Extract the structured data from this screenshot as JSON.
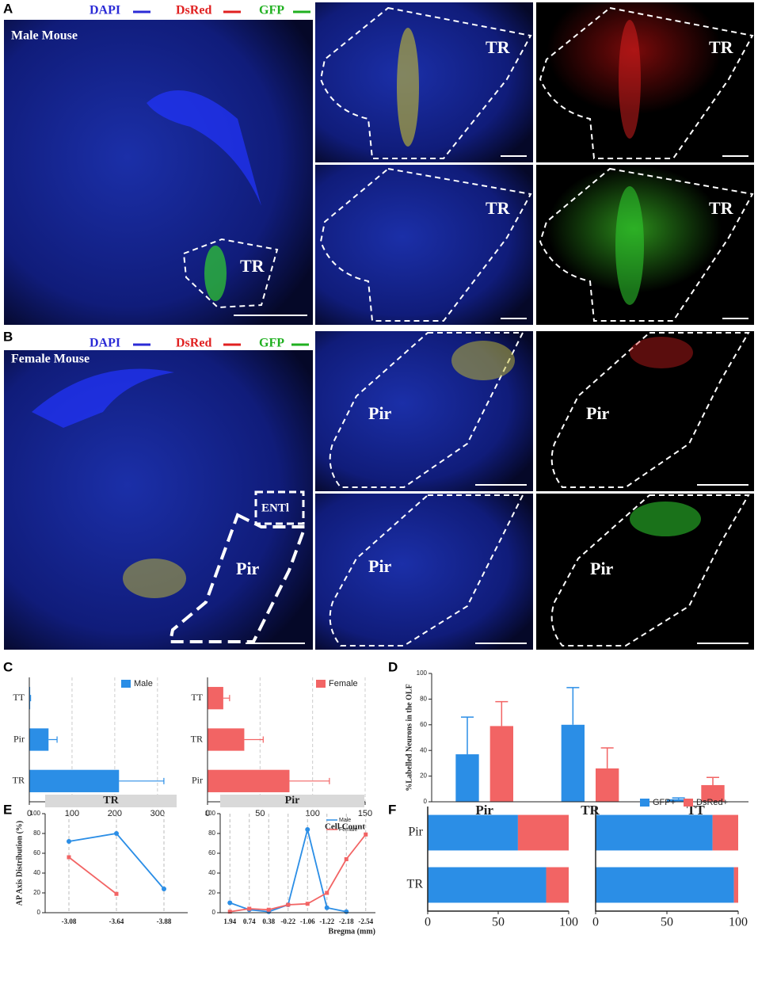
{
  "figure": {
    "panel_labels": [
      "A",
      "B",
      "C",
      "D",
      "E",
      "F"
    ],
    "channels": [
      "DAPI",
      "DsRed",
      "GFP"
    ],
    "male_mouse": "Male Mouse",
    "female_mouse": "Female Mouse",
    "region_tr": "TR",
    "region_pir": "Pir",
    "region_entl": "ENTl"
  },
  "chart_data": [
    {
      "type": "hbar",
      "categories": [
        "TT",
        "Pir",
        "TR"
      ],
      "series": [
        {
          "name": "Male",
          "color": "#2b8ee6",
          "values": [
            2,
            45,
            210
          ],
          "errors": [
            1,
            20,
            105
          ]
        }
      ],
      "xlim": [
        0,
        330
      ],
      "xticks": [
        0,
        100,
        200,
        300
      ],
      "grid": true,
      "legend": "upper right"
    },
    {
      "type": "hbar",
      "categories": [
        "TT",
        "TR",
        "Pir"
      ],
      "xlabel": "Cell Count",
      "series": [
        {
          "name": "Female",
          "color": "#f26464",
          "values": [
            15,
            35,
            78
          ],
          "errors": [
            6,
            18,
            38
          ]
        }
      ],
      "xlim": [
        0,
        150
      ],
      "xticks": [
        0,
        50,
        100,
        150
      ],
      "grid": true,
      "legend": "upper right"
    },
    {
      "type": "bar",
      "categories": [
        "Pir",
        "TR",
        "TT"
      ],
      "ylabel": "%Labelled Neurons in the OLF",
      "series": [
        {
          "color": "#2b8ee6",
          "values": [
            37,
            60,
            2
          ],
          "errors": [
            29,
            29,
            1
          ]
        },
        {
          "color": "#f26464",
          "values": [
            59,
            26,
            13
          ],
          "errors": [
            19,
            16,
            6
          ]
        }
      ],
      "ylim": [
        0,
        100
      ],
      "yticks": [
        0,
        20,
        40,
        60,
        80,
        100
      ],
      "grid": false
    },
    {
      "type": "line",
      "title": "TR",
      "ylabel": "AP Axis Distribution (%)",
      "categories": [
        "-3.08",
        "-3.64",
        "-3.88"
      ],
      "series": [
        {
          "color": "#2b8ee6",
          "values": [
            72,
            80,
            24
          ]
        },
        {
          "color": "#f26464",
          "values": [
            56,
            19,
            null
          ]
        }
      ],
      "ylim": [
        0,
        100
      ],
      "yticks": [
        0,
        20,
        40,
        60,
        80,
        100
      ],
      "grid": true
    },
    {
      "type": "line",
      "title": "Pir",
      "xlabel": "Bregma (mm)",
      "categories": [
        "1.94",
        "0.74",
        "0.38",
        "-0.22",
        "-1.06",
        "-1.22",
        "-2.18",
        "-2.54"
      ],
      "series": [
        {
          "name": "Male",
          "color": "#2b8ee6",
          "values": [
            10,
            3,
            1,
            8,
            84,
            5,
            1,
            null
          ]
        },
        {
          "name": "Female",
          "color": "#f26464",
          "values": [
            1,
            4,
            3,
            8,
            9,
            20,
            54,
            79
          ]
        }
      ],
      "ylim": [
        0,
        100
      ],
      "yticks": [
        0,
        20,
        40,
        60,
        80,
        100
      ],
      "grid": true,
      "legend": "upper right"
    },
    {
      "type": "stacked_hbar",
      "categories": [
        "Pir",
        "TR"
      ],
      "series": [
        {
          "color": "#2b8ee6",
          "values": [
            64,
            84
          ]
        },
        {
          "color": "#f26464",
          "values": [
            36,
            16
          ]
        }
      ],
      "xlim": [
        0,
        100
      ],
      "xticks": [
        0,
        50,
        100
      ],
      "grid": false
    },
    {
      "type": "stacked_hbar",
      "series": [
        {
          "name": "GFP+",
          "color": "#2b8ee6",
          "values": [
            82,
            97
          ]
        },
        {
          "name": "DsRed+",
          "color": "#f26464",
          "values": [
            18,
            3
          ]
        }
      ],
      "xlim": [
        0,
        100
      ],
      "xticks": [
        0,
        50,
        100
      ],
      "grid": false,
      "legend": "upper right"
    }
  ]
}
